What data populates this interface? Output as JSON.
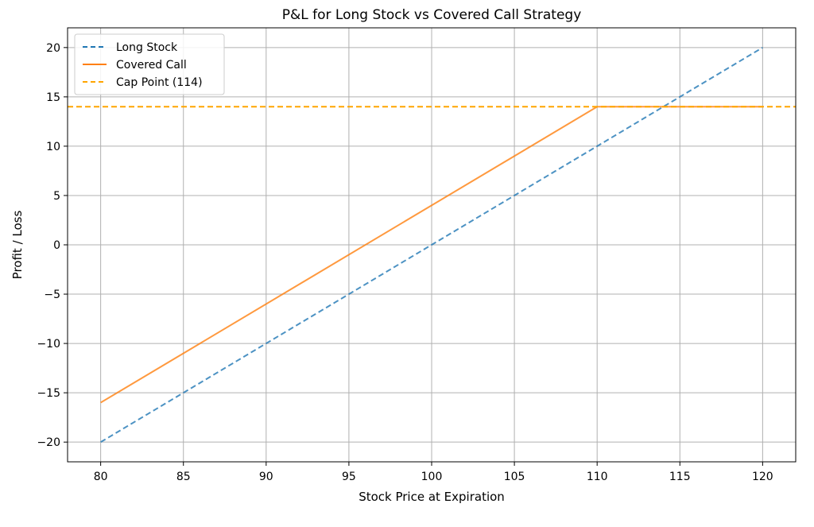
{
  "chart_data": {
    "type": "line",
    "title": "P&L for Long Stock vs Covered Call Strategy",
    "xlabel": "Stock Price at Expiration",
    "ylabel": "Profit / Loss",
    "xlim": [
      78,
      122
    ],
    "ylim": [
      -22,
      22
    ],
    "xticks": [
      80,
      85,
      90,
      95,
      100,
      105,
      110,
      115,
      120
    ],
    "yticks": [
      -20,
      -15,
      -10,
      -5,
      0,
      5,
      10,
      15,
      20
    ],
    "grid": true,
    "legend_position": "top-left",
    "series": [
      {
        "name": "Long Stock",
        "color": "#1f77b4",
        "style": "dashed",
        "x": [
          80,
          120
        ],
        "y": [
          -20,
          20
        ]
      },
      {
        "name": "Covered Call",
        "color": "#ff7f0e",
        "style": "solid",
        "x": [
          80,
          110,
          120
        ],
        "y": [
          -16,
          14,
          14
        ]
      },
      {
        "name": "Cap Point (114)",
        "color": "#ffa500",
        "style": "dashed",
        "kind": "horizontal-line",
        "y": 14
      }
    ]
  }
}
